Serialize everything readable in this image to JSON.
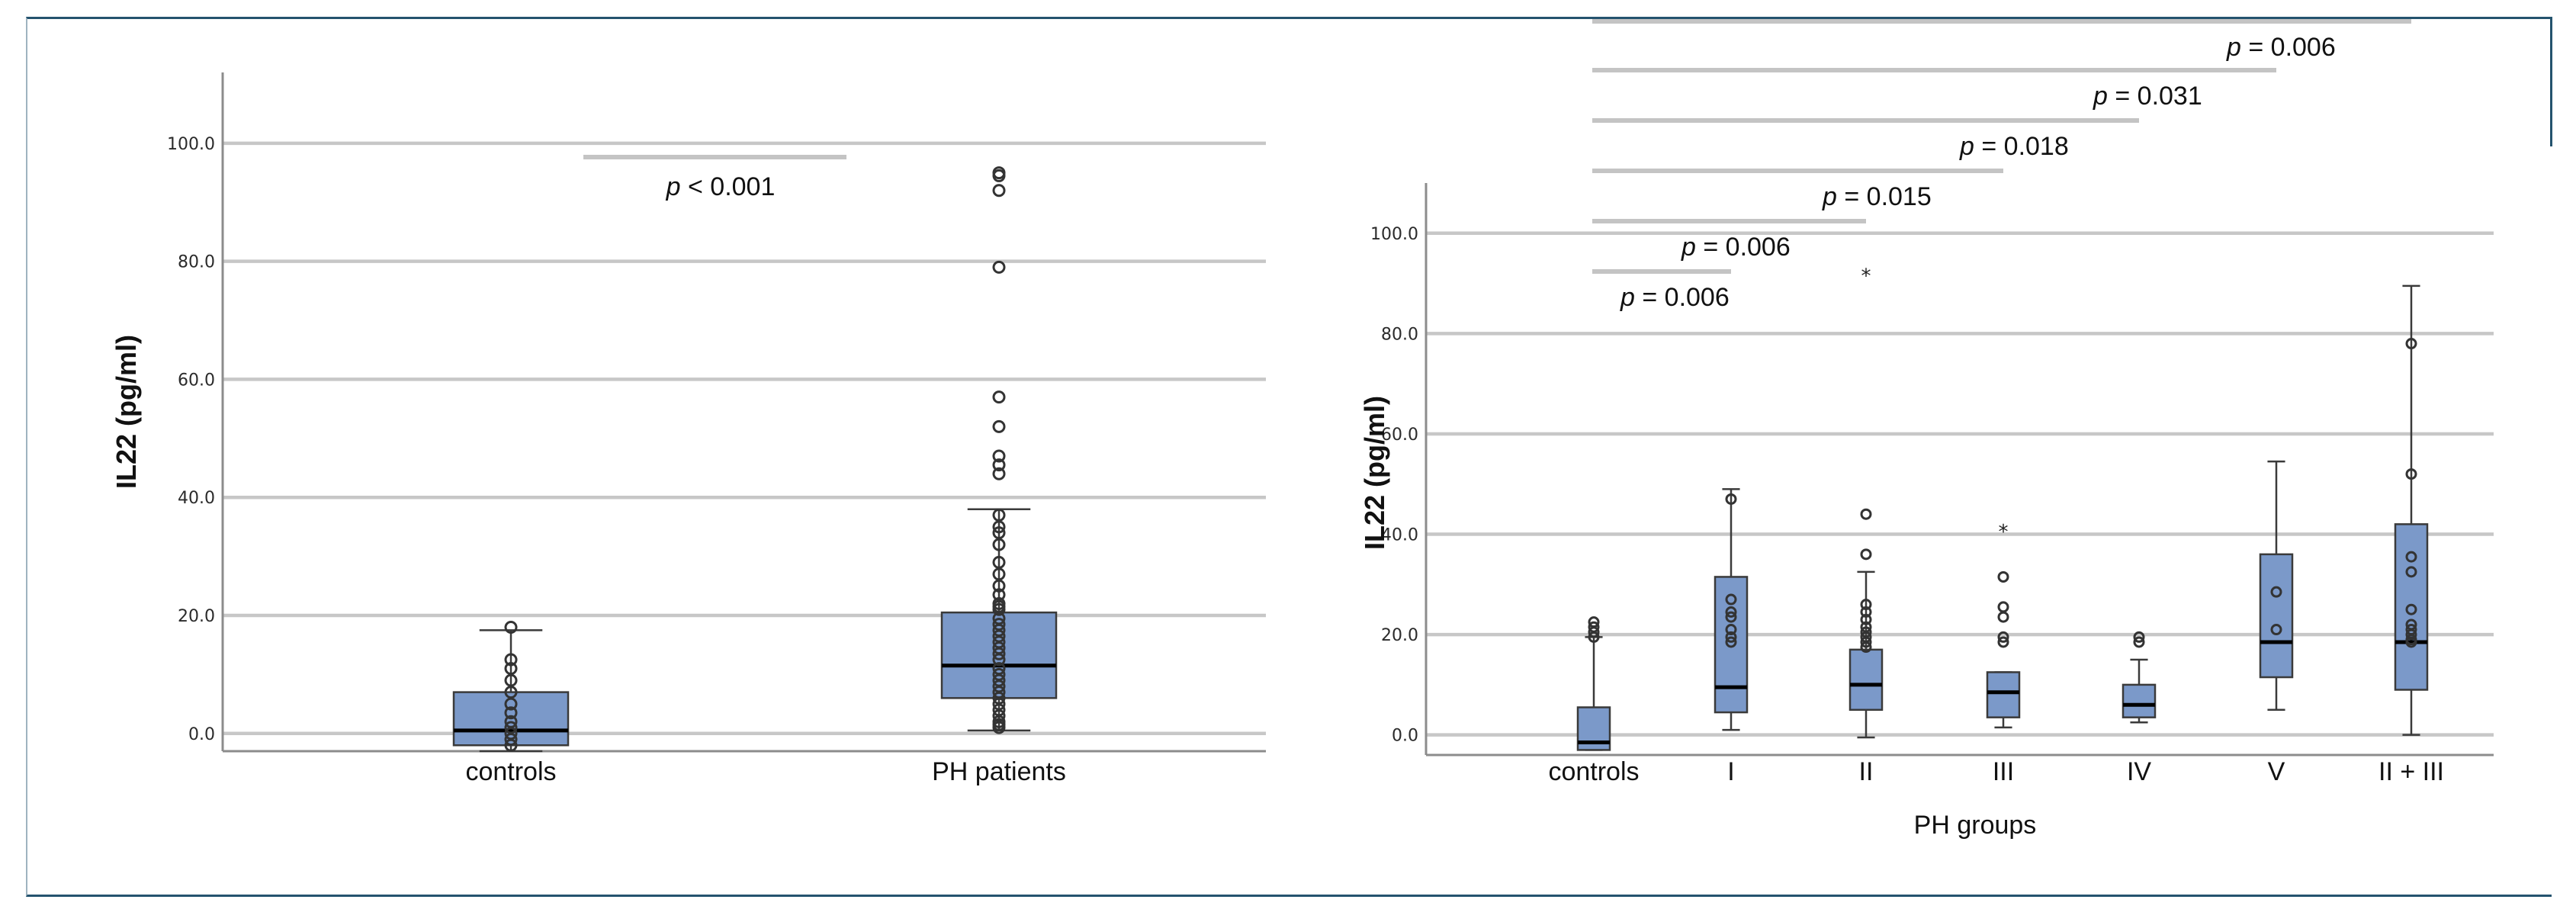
{
  "chart_data": [
    {
      "type": "boxplot",
      "ylabel": "IL22 (pg/ml)",
      "xlabel": "",
      "ylim": [
        -3,
        112
      ],
      "yticks": [
        0,
        20,
        40,
        60,
        80,
        100
      ],
      "ytick_labels": [
        "0.0",
        "20.0",
        "40.0",
        "60.0",
        "80.0",
        "100.0"
      ],
      "grid": "horizontal",
      "categories": [
        "controls",
        "PH patients"
      ],
      "boxes": [
        {
          "name": "controls",
          "min": -3,
          "q1": -2,
          "median": 0.5,
          "q3": 7,
          "max": 17.5,
          "outliers": [
            18,
            12.5,
            11,
            9,
            7,
            5,
            3.5,
            2,
            1,
            0,
            -1,
            -2
          ]
        },
        {
          "name": "PH patients",
          "min": 0.5,
          "q1": 6,
          "median": 11.5,
          "q3": 20.5,
          "max": 38,
          "outliers": [
            95,
            94.5,
            92,
            79,
            57,
            52,
            47,
            45.5,
            44,
            37,
            35,
            34,
            32,
            29,
            27,
            25,
            23.5,
            22,
            21.5,
            21,
            19.5,
            18.5,
            17.5,
            16.5,
            15.5,
            14.5,
            13.5,
            12.5,
            11,
            10,
            9,
            8,
            7,
            6,
            5,
            4,
            3,
            2,
            1.5,
            1
          ]
        }
      ],
      "annotations": [
        {
          "from": "controls",
          "to": "PH patients",
          "p_symbol": "p",
          "p_text": " < 0.001"
        }
      ]
    },
    {
      "type": "boxplot",
      "ylabel": "IL22 (pg/ml)",
      "xlabel": "PH groups",
      "ylim": [
        -4,
        110
      ],
      "yticks": [
        0,
        20,
        40,
        60,
        80,
        100
      ],
      "ytick_labels": [
        "0.0",
        "20.0",
        "40.0",
        "60.0",
        "80.0",
        "100.0"
      ],
      "grid": "horizontal",
      "categories": [
        "controls",
        "I",
        "II",
        "III",
        "IV",
        "V",
        "II + III"
      ],
      "boxes": [
        {
          "name": "controls",
          "min": -3,
          "q1": -3,
          "median": -1.5,
          "q3": 5.5,
          "max": 19.5,
          "outliers": [
            22.5,
            21.5,
            20.5,
            19.5
          ]
        },
        {
          "name": "I",
          "min": 1,
          "q1": 4.5,
          "median": 9.5,
          "q3": 31.5,
          "max": 49,
          "outliers": [
            47,
            27,
            24.5,
            23.5,
            21,
            19.5,
            18.5
          ]
        },
        {
          "name": "II",
          "min": -0.5,
          "q1": 5,
          "median": 10,
          "q3": 17,
          "max": 32.5,
          "outliers": [
            44,
            36,
            26,
            24.5,
            23,
            21.5,
            20.5,
            19.5,
            18.5,
            17.5
          ],
          "extremes": [
            92
          ]
        },
        {
          "name": "III",
          "min": 1.5,
          "q1": 3.5,
          "median": 8.5,
          "q3": 12.5,
          "max": 12.5,
          "outliers": [
            31.5,
            25.5,
            23.5,
            19.5,
            18.5
          ],
          "extremes": [
            41
          ]
        },
        {
          "name": "IV",
          "min": 2.5,
          "q1": 3.5,
          "median": 6,
          "q3": 10,
          "max": 15,
          "outliers": [
            19.5,
            18.5
          ]
        },
        {
          "name": "V",
          "min": 5,
          "q1": 11.5,
          "median": 18.5,
          "q3": 36,
          "max": 54.5,
          "outliers": [
            28.5,
            21
          ]
        },
        {
          "name": "II + III",
          "min": 0,
          "q1": 9,
          "median": 18.5,
          "q3": 42,
          "max": 89.5,
          "outliers": [
            78,
            52,
            35.5,
            32.5,
            25,
            22,
            21,
            20,
            19,
            18.5
          ]
        }
      ],
      "annotations": [
        {
          "from": "controls",
          "to": "I",
          "p_symbol": "p",
          "p_text": " = 0.006"
        },
        {
          "from": "controls",
          "to": "II",
          "p_symbol": "p",
          "p_text": " = 0.006"
        },
        {
          "from": "controls",
          "to": "III",
          "p_symbol": "p",
          "p_text": " = 0.015"
        },
        {
          "from": "controls",
          "to": "IV",
          "p_symbol": "p",
          "p_text": " = 0.018"
        },
        {
          "from": "controls",
          "to": "V",
          "p_symbol": "p",
          "p_text": " = 0.031"
        },
        {
          "from": "controls",
          "to": "II + III",
          "p_symbol": "p",
          "p_text": " = 0.006"
        }
      ]
    }
  ]
}
